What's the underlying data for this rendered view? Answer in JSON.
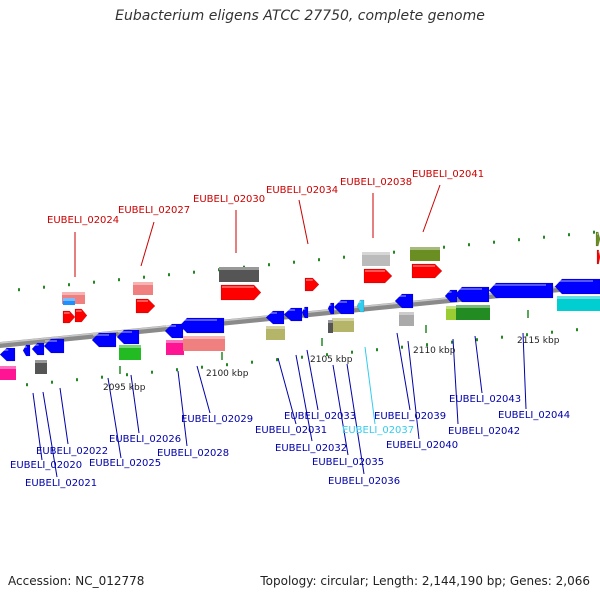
{
  "title": "Eubacterium eligens ATCC 27750, complete genome",
  "accession": "Accession: NC_012778",
  "topology": "Topology: circular; Length: 2,144,190 bp; Genes: 2,066",
  "colors": {
    "forward_gene": "#ff0000",
    "reverse_gene": "#0000ff",
    "forward_label": "#cc0000",
    "reverse_label": "#0000aa",
    "highlight_label": "#33ccee",
    "backbone": "#888888",
    "tick": "#228822"
  },
  "ticks": [
    "2095 kbp",
    "2100 kbp",
    "2105 kbp",
    "2110 kbp",
    "2115 kbp"
  ],
  "genes_forward": [
    "EUBELI_02024",
    "EUBELI_02027",
    "EUBELI_02030",
    "EUBELI_02034",
    "EUBELI_02038",
    "EUBELI_02041"
  ],
  "genes_reverse": [
    "EUBELI_02020",
    "EUBELI_02021",
    "EUBELI_02022",
    "EUBELI_02025",
    "EUBELI_02026",
    "EUBELI_02028",
    "EUBELI_02029",
    "EUBELI_02031",
    "EUBELI_02032",
    "EUBELI_02033",
    "EUBELI_02035",
    "EUBELI_02036",
    "EUBELI_02037",
    "EUBELI_02039",
    "EUBELI_02040",
    "EUBELI_02042",
    "EUBELI_02043",
    "EUBELI_02044"
  ]
}
